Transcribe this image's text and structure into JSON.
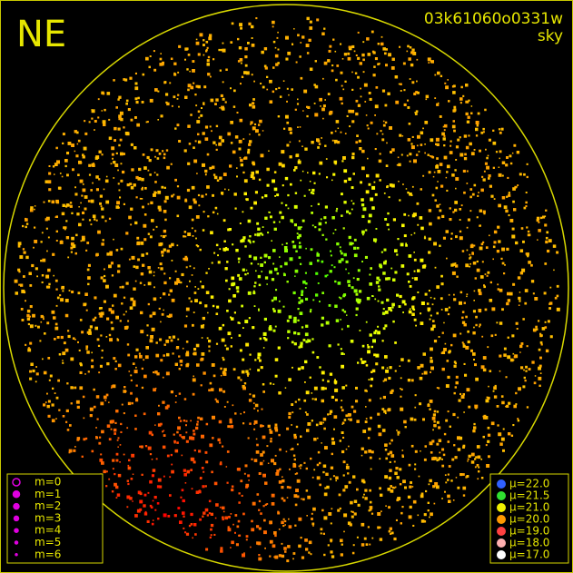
{
  "header": {
    "direction": "NE",
    "frame_id": "03k61060o0331w",
    "view": "sky"
  },
  "magnitude_legend": [
    "m=0",
    "m=1",
    "m=2",
    "m=3",
    "m=4",
    "m=5",
    "m=6"
  ],
  "sky_brightness_legend": [
    "μ=22.0",
    "μ=21.5",
    "μ=21.0",
    "μ=20.0",
    "μ=19.0",
    "μ=18.0",
    "μ=17.0"
  ]
}
